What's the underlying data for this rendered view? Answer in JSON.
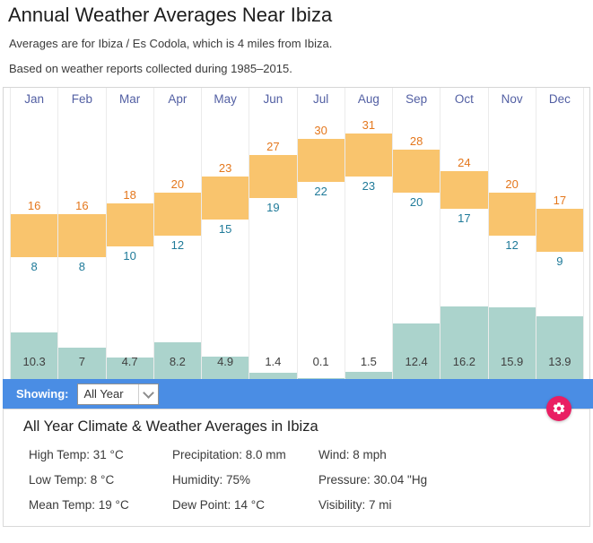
{
  "page": {
    "title": "Annual Weather Averages Near Ibiza",
    "subtitle_location": "Averages are for Ibiza / Es Codola, which is 4 miles from Ibiza.",
    "subtitle_period": "Based on weather reports collected during 1985–2015."
  },
  "chart_data": {
    "type": "bar",
    "title": "Annual Weather Averages Near Ibiza",
    "categories": [
      "Jan",
      "Feb",
      "Mar",
      "Apr",
      "May",
      "Jun",
      "Jul",
      "Aug",
      "Sep",
      "Oct",
      "Nov",
      "Dec"
    ],
    "series": [
      {
        "name": "High Temp (°C)",
        "values": [
          16,
          16,
          18,
          20,
          23,
          27,
          30,
          31,
          28,
          24,
          20,
          17
        ]
      },
      {
        "name": "Low Temp (°C)",
        "values": [
          8,
          8,
          10,
          12,
          15,
          19,
          22,
          23,
          20,
          17,
          12,
          9
        ]
      },
      {
        "name": "Precipitation",
        "values": [
          10.3,
          7,
          4.7,
          8.2,
          4.9,
          1.4,
          0.1,
          1.5,
          12.4,
          16.2,
          15.9,
          13.9
        ]
      }
    ],
    "legend_position": "none",
    "grid": "vertical-column-separators",
    "ylabel": "",
    "xlabel": ""
  },
  "controls": {
    "showing_label": "Showing:",
    "dropdown_value": "All Year"
  },
  "summary": {
    "title": "All Year Climate & Weather Averages in Ibiza",
    "columns": [
      {
        "items": [
          "High Temp: 31 °C",
          "Low Temp: 8 °C",
          "Mean Temp: 19 °C"
        ]
      },
      {
        "items": [
          "Precipitation: 8.0 mm",
          "Humidity: 75%",
          "Dew Point: 14 °C"
        ]
      },
      {
        "items": [
          "Wind: 8 mph",
          "Pressure: 30.04 \"Hg",
          "Visibility: 7 mi"
        ]
      }
    ]
  },
  "colors": {
    "temp_bar": "#f9c46d",
    "precip_bar": "#abd3cc",
    "high_label": "#e4771c",
    "low_label": "#1f7a99",
    "month_label": "#525fa3",
    "precip_label": "#3f3f3f",
    "showing_bar": "#4a8de4",
    "settings_button": "#e91e63"
  }
}
